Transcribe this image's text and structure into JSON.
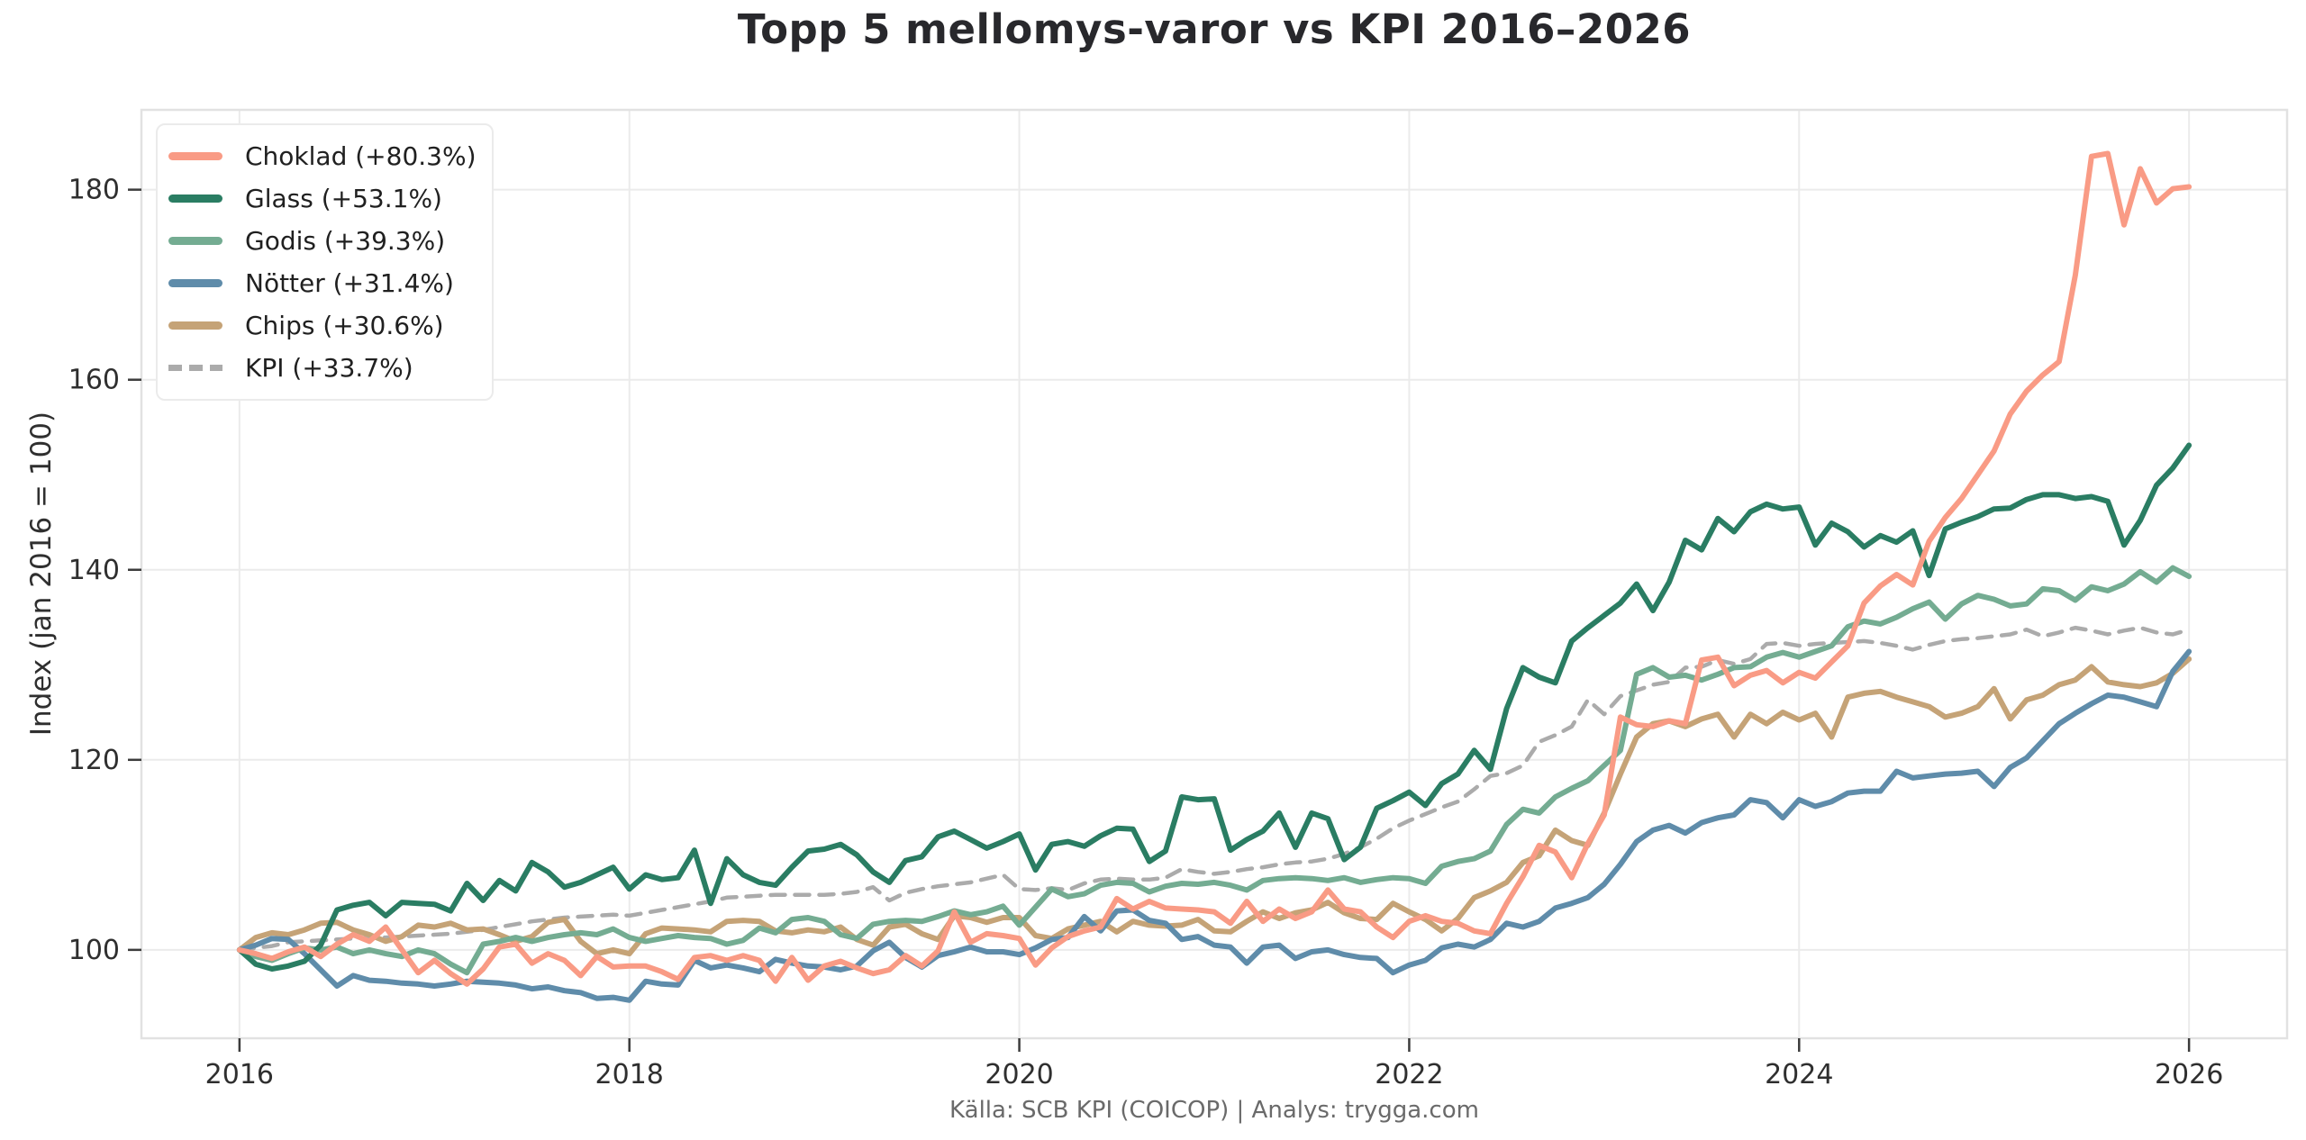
{
  "title": "Topp 5 mellomys-varor vs KPI 2016–2026",
  "y_axis_label": "Index (jan 2016 = 100)",
  "footer": "Källa: SCB KPI (COICOP) | Analys: trygga.com",
  "chart_data": {
    "type": "line",
    "x_unit": "month",
    "x_start_year": 2016,
    "x_end_year": 2026,
    "points_per_series": 121,
    "x_ticks": [
      2016,
      2018,
      2020,
      2022,
      2024,
      2026
    ],
    "y_ticks": [
      100,
      120,
      140,
      160,
      180
    ],
    "xlim": [
      2015.497,
      2026.503
    ],
    "ylim": [
      90.7,
      188.4
    ],
    "grid": true,
    "legend_position": "upper-left",
    "axis_color": "#e2e2e2",
    "grid_color": "#ebebeb",
    "tick_color": "#3c3c3c",
    "tick_label_color": "#2f2f2f",
    "series": [
      {
        "name": "choklad",
        "label": "Choklad (+80.3%)",
        "color": "#f99b85",
        "dashed": false,
        "final_change_pct": 80.3,
        "values": [
          100,
          99.6,
          99.1,
          99.8,
          100.3,
          99.3,
          100.6,
          101.6,
          100.9,
          102.4,
          100,
          97.6,
          98.9,
          97.5,
          96.4,
          98,
          100.3,
          100.6,
          98.6,
          99.6,
          98.9,
          97.3,
          99.3,
          98.2,
          98.3,
          98.3,
          97.7,
          96.9,
          99.2,
          99.4,
          98.9,
          99.4,
          98.9,
          96.7,
          99.2,
          96.8,
          98.3,
          98.8,
          98.1,
          97.5,
          97.9,
          99.4,
          98.3,
          99.9,
          104,
          100.8,
          101.7,
          101.5,
          101.2,
          98.4,
          100.2,
          101.4,
          102,
          102.4,
          105.4,
          104.3,
          105.1,
          104.4,
          104.3,
          104.2,
          104,
          102.8,
          105.1,
          103,
          104.3,
          103.3,
          104,
          106.3,
          104.3,
          104,
          102.4,
          101.3,
          103,
          103.6,
          103,
          102.8,
          102,
          101.7,
          104.9,
          107.7,
          111,
          110.3,
          107.6,
          111.2,
          114.2,
          124.5,
          123.7,
          123.5,
          124.1,
          123.8,
          130.5,
          130.8,
          127.8,
          128.9,
          129.4,
          128.1,
          129.2,
          128.6,
          130.3,
          132,
          136.5,
          138.3,
          139.5,
          138.4,
          143,
          145.5,
          147.5,
          150,
          152.5,
          156.4,
          158.8,
          160.5,
          161.9,
          171,
          183.5,
          183.8,
          176.3,
          182.2,
          178.6,
          180.1,
          180.3
        ]
      },
      {
        "name": "glass",
        "label": "Glass (+53.1%)",
        "color": "#2a7d63",
        "dashed": false,
        "final_change_pct": 53.1,
        "values": [
          100,
          98.5,
          98,
          98.3,
          98.8,
          100.5,
          104.2,
          104.7,
          105,
          103.6,
          105,
          104.9,
          104.8,
          104.1,
          107,
          105.2,
          107.3,
          106.2,
          109.2,
          108.2,
          106.6,
          107.1,
          107.9,
          108.7,
          106.4,
          107.9,
          107.4,
          107.6,
          110.5,
          104.9,
          109.6,
          107.9,
          107.1,
          106.8,
          108.7,
          110.4,
          110.6,
          111.1,
          110,
          108.2,
          107.1,
          109.4,
          109.8,
          111.9,
          112.5,
          111.6,
          110.7,
          111.4,
          112.2,
          108.4,
          111.1,
          111.4,
          110.9,
          112,
          112.8,
          112.7,
          109.3,
          110.4,
          116.1,
          115.8,
          115.9,
          110.5,
          111.6,
          112.5,
          114.4,
          110.8,
          114.4,
          113.8,
          109.5,
          110.8,
          114.9,
          115.7,
          116.6,
          115.2,
          117.5,
          118.5,
          121,
          119,
          125.4,
          129.7,
          128.7,
          128.1,
          132.5,
          133.9,
          135.2,
          136.5,
          138.5,
          135.7,
          138.7,
          143.1,
          142.1,
          145.4,
          144,
          146.1,
          146.9,
          146.4,
          146.6,
          142.6,
          144.9,
          144,
          142.4,
          143.6,
          142.9,
          144.1,
          139.4,
          144.3,
          145,
          145.6,
          146.4,
          146.5,
          147.4,
          147.9,
          147.9,
          147.5,
          147.7,
          147.2,
          142.6,
          145.2,
          148.9,
          150.7,
          153.1
        ]
      },
      {
        "name": "godis",
        "label": "Godis (+39.3%)",
        "color": "#74ac92",
        "dashed": false,
        "final_change_pct": 39.3,
        "values": [
          100,
          99.3,
          98.9,
          99.6,
          100.2,
          100,
          100.3,
          99.6,
          100,
          99.6,
          99.3,
          100,
          99.6,
          98.5,
          97.6,
          100.6,
          100.9,
          101.3,
          100.9,
          101.3,
          101.6,
          101.8,
          101.6,
          102.2,
          101.3,
          100.9,
          101.2,
          101.5,
          101.3,
          101.2,
          100.6,
          101,
          102.3,
          101.8,
          103.2,
          103.4,
          103,
          101.6,
          101.2,
          102.7,
          103,
          103.1,
          103,
          103.5,
          104.1,
          103.7,
          104,
          104.6,
          102.6,
          104.5,
          106.4,
          105.6,
          105.9,
          106.8,
          107.1,
          107,
          106.1,
          106.7,
          107,
          106.9,
          107.1,
          106.8,
          106.3,
          107.3,
          107.5,
          107.6,
          107.5,
          107.3,
          107.6,
          107.1,
          107.4,
          107.6,
          107.5,
          107,
          108.8,
          109.3,
          109.6,
          110.4,
          113.2,
          114.8,
          114.4,
          116.1,
          117,
          117.8,
          119.4,
          121,
          129,
          129.7,
          128.7,
          128.9,
          128.4,
          129,
          129.7,
          129.8,
          130.8,
          131.3,
          130.8,
          131.4,
          132,
          134,
          134.6,
          134.3,
          135,
          135.9,
          136.6,
          134.8,
          136.4,
          137.3,
          136.9,
          136.2,
          136.4,
          138,
          137.8,
          136.8,
          138.2,
          137.8,
          138.5,
          139.8,
          138.7,
          140.2,
          139.3
        ]
      },
      {
        "name": "notter",
        "label": "Nötter (+31.4%)",
        "color": "#5f8caa",
        "dashed": false,
        "final_change_pct": 31.4,
        "values": [
          100,
          100.5,
          101.2,
          101.1,
          99.6,
          97.9,
          96.2,
          97.3,
          96.8,
          96.7,
          96.5,
          96.4,
          96.2,
          96.4,
          96.7,
          96.6,
          96.5,
          96.3,
          95.9,
          96.1,
          95.7,
          95.5,
          94.9,
          95,
          94.7,
          96.7,
          96.4,
          96.3,
          98.9,
          98.1,
          98.4,
          98.1,
          97.7,
          99,
          98.6,
          98.3,
          98.2,
          97.9,
          98.3,
          99.9,
          100.8,
          99.2,
          98.2,
          99.4,
          99.8,
          100.3,
          99.8,
          99.8,
          99.5,
          100.2,
          101.1,
          101.3,
          103.5,
          102,
          104.1,
          104.2,
          103.1,
          102.8,
          101.1,
          101.4,
          100.5,
          100.3,
          98.6,
          100.3,
          100.5,
          99.1,
          99.8,
          100,
          99.5,
          99.2,
          99.1,
          97.6,
          98.4,
          98.9,
          100.2,
          100.6,
          100.3,
          101.1,
          102.8,
          102.4,
          103,
          104.4,
          104.9,
          105.5,
          106.9,
          109,
          111.4,
          112.6,
          113.1,
          112.3,
          113.4,
          113.9,
          114.2,
          115.8,
          115.5,
          113.9,
          115.8,
          115.1,
          115.6,
          116.5,
          116.7,
          116.7,
          118.8,
          118.1,
          118.3,
          118.5,
          118.6,
          118.8,
          117.2,
          119.2,
          120.2,
          122,
          123.8,
          124.9,
          125.9,
          126.8,
          126.6,
          126.1,
          125.6,
          129.3,
          131.4
        ]
      },
      {
        "name": "chips",
        "label": "Chips (+30.6%)",
        "color": "#c5a377",
        "dashed": false,
        "final_change_pct": 30.6,
        "values": [
          100,
          101.3,
          101.8,
          101.6,
          102.1,
          102.8,
          102.9,
          102.1,
          101.6,
          100.9,
          101.4,
          102.6,
          102.4,
          102.8,
          102.1,
          102.2,
          101.6,
          100.9,
          101.4,
          102.9,
          103.2,
          100.9,
          99.6,
          100,
          99.6,
          101.7,
          102.3,
          102.2,
          102.1,
          101.9,
          103,
          103.1,
          103,
          102,
          101.8,
          102.1,
          101.9,
          102.4,
          101.1,
          100.5,
          102.4,
          102.7,
          101.7,
          101.1,
          103.6,
          103.4,
          102.9,
          103.4,
          103.4,
          101.5,
          101.2,
          102.2,
          102.6,
          103,
          101.9,
          103,
          102.6,
          102.5,
          102.6,
          103.2,
          102,
          101.9,
          103,
          104,
          103.3,
          103.9,
          104.2,
          105,
          103.9,
          103.3,
          103.2,
          104.9,
          104,
          103.2,
          102,
          103.3,
          105.5,
          106.2,
          107.1,
          109.2,
          109.9,
          112.6,
          111.5,
          111,
          114.4,
          118.5,
          122.4,
          123.8,
          124.1,
          123.5,
          124.3,
          124.8,
          122.4,
          124.8,
          123.8,
          125,
          124.2,
          124.9,
          122.4,
          126.6,
          127,
          127.2,
          126.6,
          126.1,
          125.6,
          124.5,
          124.9,
          125.6,
          127.5,
          124.3,
          126.3,
          126.8,
          127.9,
          128.4,
          129.8,
          128.2,
          127.9,
          127.7,
          128.1,
          129.1,
          130.6
        ]
      },
      {
        "name": "kpi",
        "label": "KPI (+33.7%)",
        "color": "#ababab",
        "dashed": true,
        "final_change_pct": 33.7,
        "values": [
          100,
          100.2,
          100.4,
          100.8,
          100.9,
          101,
          101.1,
          101.2,
          101.3,
          101.3,
          101.4,
          101.5,
          101.6,
          101.7,
          101.9,
          102.1,
          102.4,
          102.7,
          103,
          103.2,
          103.4,
          103.5,
          103.6,
          103.7,
          103.6,
          103.9,
          104.2,
          104.5,
          104.8,
          105.1,
          105.5,
          105.6,
          105.7,
          105.8,
          105.8,
          105.8,
          105.8,
          105.9,
          106.1,
          106.6,
          105.2,
          106,
          106.4,
          106.7,
          106.9,
          107.1,
          107.5,
          107.9,
          106.4,
          106.3,
          106.5,
          106.3,
          107,
          107.4,
          107.5,
          107.4,
          107.4,
          107.6,
          108.5,
          108.2,
          108,
          108.2,
          108.5,
          108.7,
          109,
          109.2,
          109.3,
          109.6,
          110.1,
          110.8,
          111.7,
          112.8,
          113.6,
          114.3,
          115,
          115.6,
          116.9,
          118.3,
          118.6,
          119.4,
          121.9,
          122.6,
          123.5,
          126.3,
          124.8,
          126.7,
          127.3,
          127.9,
          128.2,
          129.7,
          129.8,
          130.5,
          130.1,
          130.6,
          132.2,
          132.3,
          132,
          132.2,
          132.3,
          132.4,
          132.5,
          132.3,
          132,
          131.6,
          132.1,
          132.5,
          132.7,
          132.8,
          133,
          133.2,
          133.7,
          133,
          133.4,
          133.9,
          133.6,
          133.2,
          133.6,
          133.9,
          133.4,
          133.2,
          133.7
        ]
      }
    ]
  }
}
